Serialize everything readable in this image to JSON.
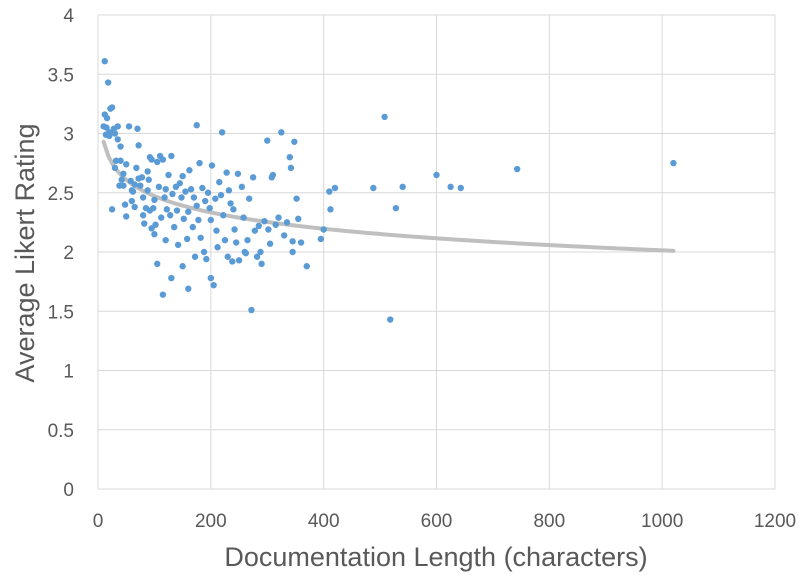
{
  "chart_data": {
    "type": "scatter",
    "title": "",
    "xlabel": "Documentation Length (characters)",
    "ylabel": "Average Likert Rating",
    "xlim": [
      0,
      1200
    ],
    "ylim": [
      0,
      4
    ],
    "x_ticks": [
      "0",
      "200",
      "400",
      "600",
      "800",
      "1000",
      "1200"
    ],
    "y_ticks": [
      "0",
      "0.5",
      "1",
      "1.5",
      "2",
      "2.5",
      "3",
      "3.5",
      "4"
    ],
    "grid": true,
    "legend": "none",
    "series": [
      {
        "marker_color": "#5b9bd5",
        "points": [
          [
            12,
            3.61
          ],
          [
            18,
            3.43
          ],
          [
            10,
            3.06
          ],
          [
            14,
            2.99
          ],
          [
            12,
            3.16
          ],
          [
            16,
            3.13
          ],
          [
            20,
            3.01
          ],
          [
            22,
            3.21
          ],
          [
            25,
            3.22
          ],
          [
            20,
            2.98
          ],
          [
            15,
            3.05
          ],
          [
            25,
            2.36
          ],
          [
            28,
            3.04
          ],
          [
            30,
            2.71
          ],
          [
            30,
            3.0
          ],
          [
            32,
            2.77
          ],
          [
            35,
            3.06
          ],
          [
            35,
            2.95
          ],
          [
            38,
            2.56
          ],
          [
            40,
            2.77
          ],
          [
            40,
            2.89
          ],
          [
            42,
            2.61
          ],
          [
            45,
            2.56
          ],
          [
            45,
            2.66
          ],
          [
            48,
            2.4
          ],
          [
            50,
            2.3
          ],
          [
            50,
            2.74
          ],
          [
            55,
            3.06
          ],
          [
            58,
            2.6
          ],
          [
            60,
            2.52
          ],
          [
            60,
            2.43
          ],
          [
            62,
            2.51
          ],
          [
            65,
            2.57
          ],
          [
            65,
            2.38
          ],
          [
            68,
            2.71
          ],
          [
            70,
            3.04
          ],
          [
            72,
            2.9
          ],
          [
            72,
            2.62
          ],
          [
            75,
            2.56
          ],
          [
            78,
            2.63
          ],
          [
            80,
            2.46
          ],
          [
            80,
            2.31
          ],
          [
            82,
            2.24
          ],
          [
            85,
            2.37
          ],
          [
            88,
            2.52
          ],
          [
            88,
            2.68
          ],
          [
            90,
            2.61
          ],
          [
            92,
            2.8
          ],
          [
            92,
            2.35
          ],
          [
            95,
            2.78
          ],
          [
            95,
            2.2
          ],
          [
            98,
            2.37
          ],
          [
            100,
            2.44
          ],
          [
            100,
            2.15
          ],
          [
            102,
            2.23
          ],
          [
            105,
            2.76
          ],
          [
            105,
            1.9
          ],
          [
            108,
            2.55
          ],
          [
            110,
            2.81
          ],
          [
            112,
            2.29
          ],
          [
            115,
            2.78
          ],
          [
            115,
            1.64
          ],
          [
            118,
            2.46
          ],
          [
            120,
            2.53
          ],
          [
            120,
            2.1
          ],
          [
            122,
            2.36
          ],
          [
            125,
            2.65
          ],
          [
            128,
            2.31
          ],
          [
            130,
            2.81
          ],
          [
            130,
            1.78
          ],
          [
            132,
            2.49
          ],
          [
            135,
            2.21
          ],
          [
            138,
            2.55
          ],
          [
            140,
            2.35
          ],
          [
            142,
            2.06
          ],
          [
            145,
            2.58
          ],
          [
            148,
            2.46
          ],
          [
            150,
            2.64
          ],
          [
            150,
            1.88
          ],
          [
            152,
            2.28
          ],
          [
            155,
            2.51
          ],
          [
            158,
            2.11
          ],
          [
            160,
            2.34
          ],
          [
            160,
            1.69
          ],
          [
            162,
            2.69
          ],
          [
            165,
            2.53
          ],
          [
            168,
            2.21
          ],
          [
            170,
            2.46
          ],
          [
            172,
            1.96
          ],
          [
            175,
            3.07
          ],
          [
            175,
            2.39
          ],
          [
            178,
            2.27
          ],
          [
            180,
            2.75
          ],
          [
            182,
            2.12
          ],
          [
            185,
            2.54
          ],
          [
            188,
            2.0
          ],
          [
            190,
            2.43
          ],
          [
            192,
            1.94
          ],
          [
            195,
            2.5
          ],
          [
            198,
            2.37
          ],
          [
            200,
            1.78
          ],
          [
            200,
            2.27
          ],
          [
            202,
            2.73
          ],
          [
            205,
            1.72
          ],
          [
            208,
            2.45
          ],
          [
            210,
            2.18
          ],
          [
            212,
            2.04
          ],
          [
            215,
            2.59
          ],
          [
            218,
            2.48
          ],
          [
            220,
            3.01
          ],
          [
            222,
            2.31
          ],
          [
            225,
            2.1
          ],
          [
            228,
            2.67
          ],
          [
            230,
            1.96
          ],
          [
            232,
            2.52
          ],
          [
            235,
            2.41
          ],
          [
            238,
            1.92
          ],
          [
            240,
            2.36
          ],
          [
            242,
            2.19
          ],
          [
            245,
            2.08
          ],
          [
            248,
            2.66
          ],
          [
            250,
            1.93
          ],
          [
            255,
            2.55
          ],
          [
            258,
            2.29
          ],
          [
            260,
            2.0
          ],
          [
            262,
            1.99
          ],
          [
            265,
            2.1
          ],
          [
            268,
            2.45
          ],
          [
            272,
            1.51
          ],
          [
            275,
            2.63
          ],
          [
            278,
            2.18
          ],
          [
            282,
            1.96
          ],
          [
            285,
            2.22
          ],
          [
            288,
            2.0
          ],
          [
            290,
            1.9
          ],
          [
            295,
            2.26
          ],
          [
            300,
            2.94
          ],
          [
            302,
            2.19
          ],
          [
            305,
            2.07
          ],
          [
            308,
            2.63
          ],
          [
            310,
            2.65
          ],
          [
            315,
            2.23
          ],
          [
            320,
            2.29
          ],
          [
            325,
            3.01
          ],
          [
            330,
            2.14
          ],
          [
            335,
            2.25
          ],
          [
            340,
            2.8
          ],
          [
            342,
            2.71
          ],
          [
            345,
            2.09
          ],
          [
            345,
            2.0
          ],
          [
            348,
            2.93
          ],
          [
            352,
            2.45
          ],
          [
            355,
            2.28
          ],
          [
            360,
            2.08
          ],
          [
            370,
            1.88
          ],
          [
            395,
            2.11
          ],
          [
            400,
            2.19
          ],
          [
            410,
            2.51
          ],
          [
            412,
            2.36
          ],
          [
            420,
            2.54
          ],
          [
            488,
            2.54
          ],
          [
            508,
            3.14
          ],
          [
            518,
            1.43
          ],
          [
            528,
            2.37
          ],
          [
            540,
            2.55
          ],
          [
            600,
            2.65
          ],
          [
            625,
            2.55
          ],
          [
            643,
            2.54
          ],
          [
            743,
            2.7
          ],
          [
            1020,
            2.75
          ]
        ]
      }
    ],
    "trendline": {
      "type": "logarithmic",
      "color": "#bfbfbf",
      "x_range": [
        10,
        1020
      ],
      "y_at_start": 2.93,
      "y_at_end": 2.01
    }
  }
}
